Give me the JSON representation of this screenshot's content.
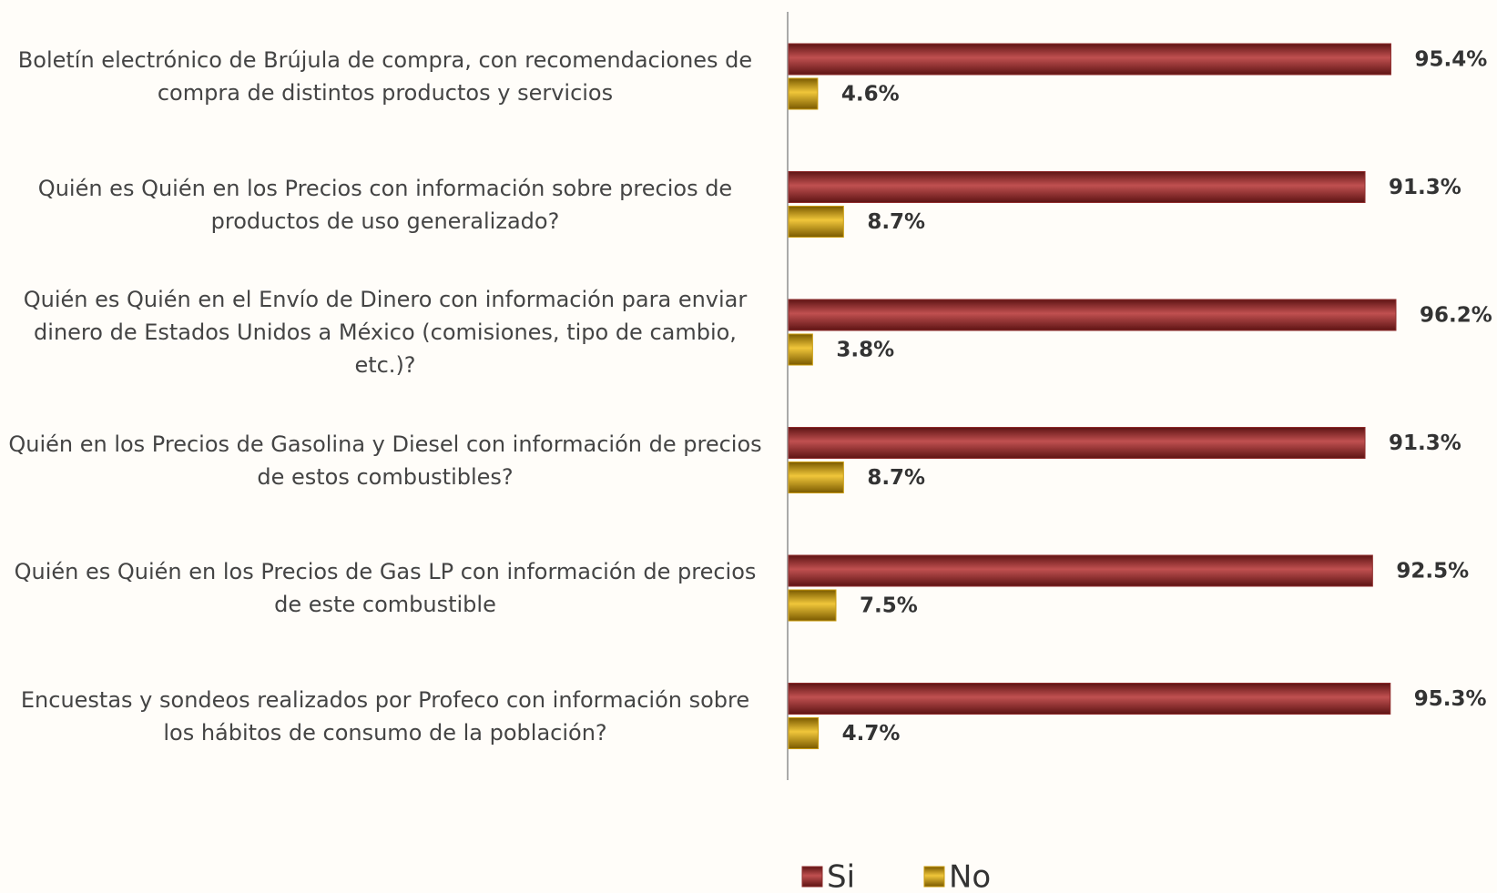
{
  "chart_data": {
    "type": "bar",
    "orientation": "horizontal",
    "categories": [
      "Boletín electrónico de Brújula de compra, con recomendaciones de compra de distintos productos y servicios",
      "Quién es Quién en los Precios con información sobre precios de productos de uso generalizado?",
      "Quién es Quién en el Envío de Dinero con información para enviar dinero de Estados Unidos a México (comisiones, tipo de cambio, etc.)?",
      "Quién en los Precios de Gasolina y Diesel con información de precios de estos combustibles?",
      "Quién es Quién en los Precios de Gas LP con información de precios de este combustible",
      "Encuestas y sondeos realizados por Profeco con información sobre los hábitos de consumo de la población?"
    ],
    "series": [
      {
        "name": "Si",
        "color": "#8e2b2b",
        "values": [
          95.4,
          91.3,
          96.2,
          91.3,
          92.5,
          95.3
        ],
        "value_labels": [
          "95.4%",
          "91.3%",
          "96.2%",
          "91.3%",
          "92.5%",
          "95.3%"
        ]
      },
      {
        "name": "No",
        "color": "#c99a0c",
        "values": [
          4.6,
          8.7,
          3.8,
          8.7,
          7.5,
          4.7
        ],
        "value_labels": [
          "4.6%",
          "8.7%",
          "3.8%",
          "8.7%",
          "7.5%",
          "4.7%"
        ]
      }
    ],
    "legend": "bottom"
  }
}
